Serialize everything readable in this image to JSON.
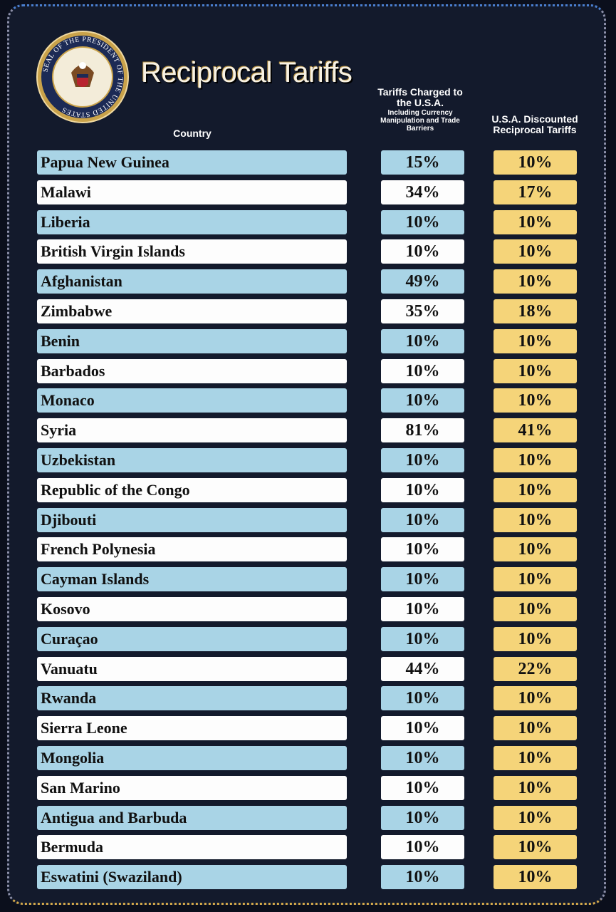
{
  "seal": {
    "text": "SEAL OF THE PRESIDENT OF THE UNITED STATES"
  },
  "header": {
    "title": "Reciprocal Tariffs"
  },
  "table": {
    "columns": {
      "country": "Country",
      "charged": "Tariffs Charged to the U.S.A.",
      "charged_note": "Including Currency Manipulation and Trade Barriers",
      "discounted": "U.S.A. Discounted Reciprocal Tariffs"
    },
    "rows": [
      [
        "Papua New Guinea",
        "15%",
        "10%"
      ],
      [
        "Malawi",
        "34%",
        "17%"
      ],
      [
        "Liberia",
        "10%",
        "10%"
      ],
      [
        "British Virgin Islands",
        "10%",
        "10%"
      ],
      [
        "Afghanistan",
        "49%",
        "10%"
      ],
      [
        "Zimbabwe",
        "35%",
        "18%"
      ],
      [
        "Benin",
        "10%",
        "10%"
      ],
      [
        "Barbados",
        "10%",
        "10%"
      ],
      [
        "Monaco",
        "10%",
        "10%"
      ],
      [
        "Syria",
        "81%",
        "41%"
      ],
      [
        "Uzbekistan",
        "10%",
        "10%"
      ],
      [
        "Republic of the Congo",
        "10%",
        "10%"
      ],
      [
        "Djibouti",
        "10%",
        "10%"
      ],
      [
        "French Polynesia",
        "10%",
        "10%"
      ],
      [
        "Cayman Islands",
        "10%",
        "10%"
      ],
      [
        "Kosovo",
        "10%",
        "10%"
      ],
      [
        "Curaçao",
        "10%",
        "10%"
      ],
      [
        "Vanuatu",
        "44%",
        "22%"
      ],
      [
        "Rwanda",
        "10%",
        "10%"
      ],
      [
        "Sierra Leone",
        "10%",
        "10%"
      ],
      [
        "Mongolia",
        "10%",
        "10%"
      ],
      [
        "San Marino",
        "10%",
        "10%"
      ],
      [
        "Antigua and Barbuda",
        "10%",
        "10%"
      ],
      [
        "Bermuda",
        "10%",
        "10%"
      ],
      [
        "Eswatini (Swaziland)",
        "10%",
        "10%"
      ]
    ]
  }
}
